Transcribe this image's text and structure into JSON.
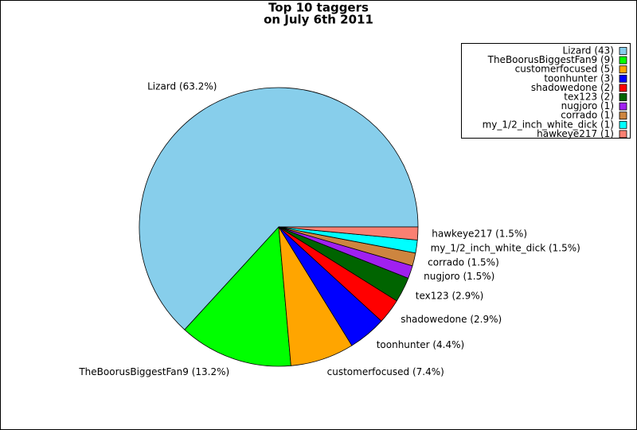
{
  "chart_data": {
    "type": "pie",
    "title": [
      "Top 10 taggers",
      "on July 6th 2011"
    ],
    "values": [
      63.2,
      13.2,
      7.4,
      4.4,
      2.9,
      2.9,
      1.5,
      1.5,
      1.5,
      1.5
    ],
    "value_labels": [
      "Lizard (63.2%)",
      "TheBoorusBiggestFan9 (13.2%)",
      "customerfocused (7.4%)",
      "toonhunter (4.4%)",
      "shadowedone (2.9%)",
      "tex123 (2.9%)",
      "nugjoro (1.5%)",
      "corrado (1.5%)",
      "my_1/2_inch_white_dick (1.5%)",
      "hawkeye217 (1.5%)"
    ],
    "legend_labels": [
      "Lizard (43)",
      "TheBoorusBiggestFan9 (9)",
      "customerfocused (5)",
      "toonhunter (3)",
      "shadowedone (2)",
      "tex123 (2)",
      "nugjoro (1)",
      "corrado (1)",
      "my_1/2_inch_white_dick (1)",
      "hawkeye217 (1)"
    ],
    "colors": [
      "#87ceeb",
      "#00ff00",
      "#ffa500",
      "#0000ff",
      "#ff0000",
      "#006400",
      "#a020f0",
      "#cd853f",
      "#00ffff",
      "#fa8072"
    ],
    "legend_position": "upper right"
  }
}
